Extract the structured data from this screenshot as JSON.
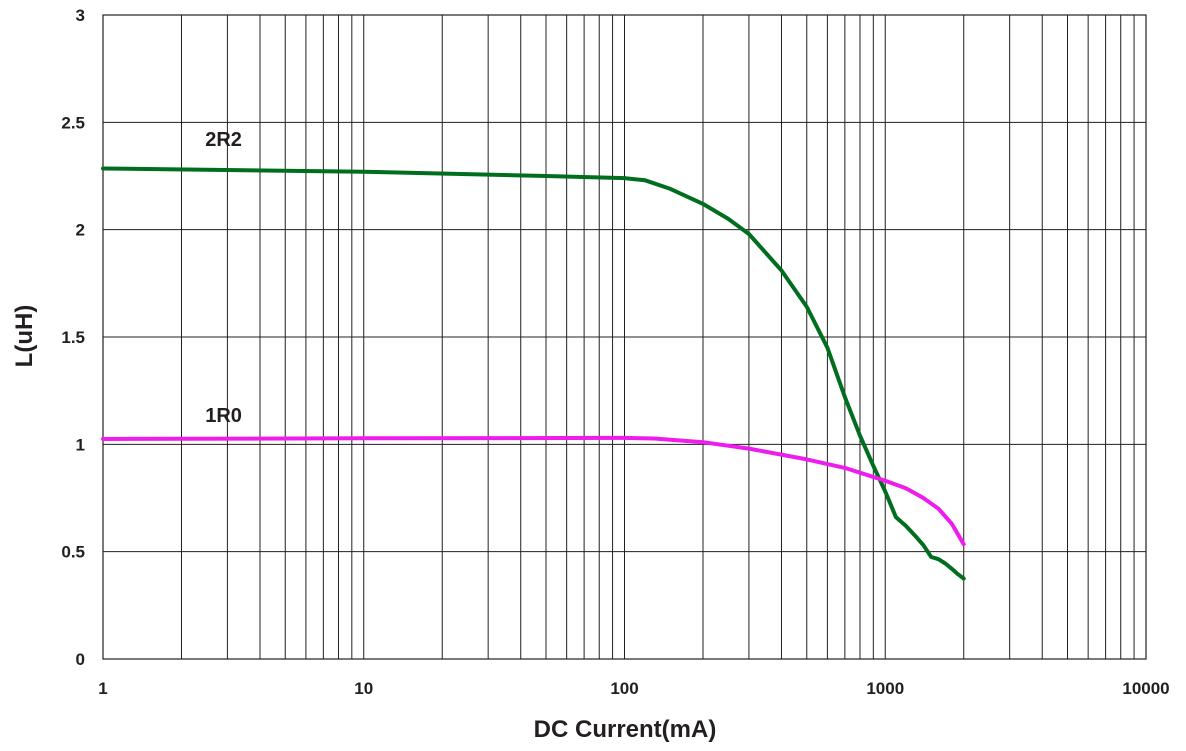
{
  "chart_data": {
    "type": "line",
    "xlabel": "DC Current(mA)",
    "ylabel": "L(uH)",
    "xscale": "log",
    "xlim": [
      1,
      10000
    ],
    "ylim": [
      0,
      3
    ],
    "grid": true,
    "x_ticks": [
      "1",
      "10",
      "100",
      "1000",
      "10000"
    ],
    "y_ticks": [
      "0",
      "0.5",
      "1",
      "1.5",
      "2",
      "2.5",
      "3"
    ],
    "series": [
      {
        "name": "2R2",
        "color": "#006e1e",
        "label_anchor": [
          2.9,
          2.39
        ],
        "points": [
          [
            1,
            2.285
          ],
          [
            10,
            2.27
          ],
          [
            50,
            2.25
          ],
          [
            100,
            2.24
          ],
          [
            120,
            2.23
          ],
          [
            150,
            2.19
          ],
          [
            200,
            2.12
          ],
          [
            250,
            2.05
          ],
          [
            300,
            1.98
          ],
          [
            400,
            1.81
          ],
          [
            500,
            1.64
          ],
          [
            600,
            1.45
          ],
          [
            700,
            1.22
          ],
          [
            800,
            1.04
          ],
          [
            900,
            0.9
          ],
          [
            1000,
            0.78
          ],
          [
            1100,
            0.66
          ],
          [
            1200,
            0.62
          ],
          [
            1300,
            0.575
          ],
          [
            1400,
            0.53
          ],
          [
            1500,
            0.475
          ],
          [
            1600,
            0.465
          ],
          [
            1700,
            0.445
          ],
          [
            1800,
            0.42
          ],
          [
            1900,
            0.395
          ],
          [
            2000,
            0.375
          ]
        ]
      },
      {
        "name": "1R0",
        "color": "#ee1cec",
        "label_anchor": [
          2.9,
          1.105
        ],
        "points": [
          [
            1,
            1.025
          ],
          [
            10,
            1.028
          ],
          [
            100,
            1.03
          ],
          [
            130,
            1.027
          ],
          [
            200,
            1.01
          ],
          [
            300,
            0.98
          ],
          [
            500,
            0.93
          ],
          [
            700,
            0.89
          ],
          [
            1000,
            0.83
          ],
          [
            1200,
            0.795
          ],
          [
            1400,
            0.75
          ],
          [
            1600,
            0.7
          ],
          [
            1800,
            0.63
          ],
          [
            2000,
            0.535
          ]
        ]
      }
    ]
  }
}
